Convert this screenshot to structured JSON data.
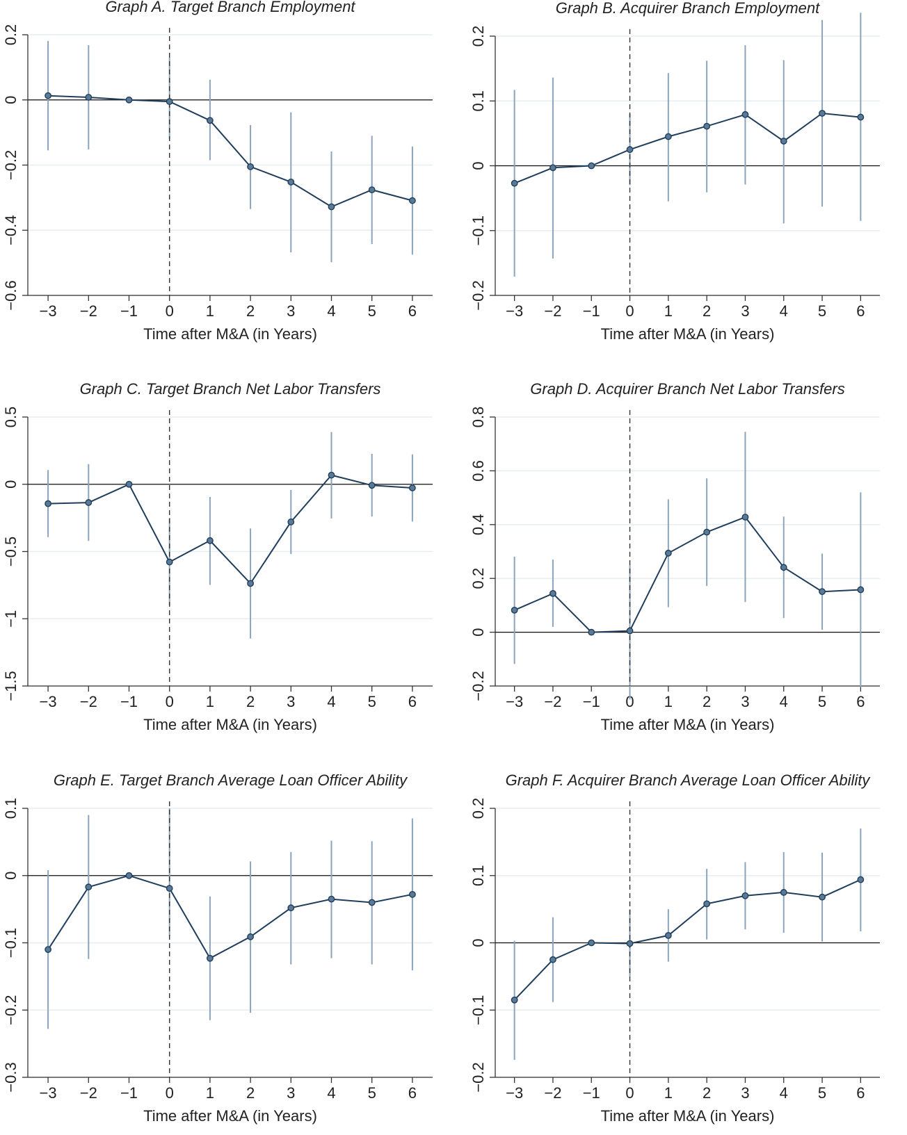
{
  "style": {
    "line_color": "#1f3d5c",
    "marker_fill": "#5a7a96",
    "ci_color": "#8aa4bd",
    "grid_color": "#e7eef1",
    "axis_color": "#333333"
  },
  "chart_data": [
    {
      "type": "line",
      "title": "Graph A. Target Branch Employment",
      "xlabel": "Time after M&A (in Years)",
      "ylabel": "",
      "xlim": [
        -3.5,
        6.5
      ],
      "ylim": [
        -0.6,
        0.2
      ],
      "y_ticks": [
        -0.6,
        -0.4,
        -0.2,
        0,
        0.2
      ],
      "y_tick_labels": [
        "−0.6",
        "−0.4",
        "−0.2",
        "0",
        "0.2"
      ],
      "x_ticks": [
        -3,
        -2,
        -1,
        0,
        1,
        2,
        3,
        4,
        5,
        6
      ],
      "x_tick_labels": [
        "−3",
        "−2",
        "−1",
        "0",
        "1",
        "2",
        "3",
        "4",
        "5",
        "6"
      ],
      "event_line_x": 0,
      "zero_line_y": 0,
      "series": [
        {
          "x": [
            -3,
            -2,
            -1,
            0,
            1,
            2,
            3,
            4,
            5,
            6
          ],
          "y": [
            0.013,
            0.008,
            0.0,
            -0.005,
            -0.063,
            -0.205,
            -0.252,
            -0.328,
            -0.276,
            -0.309
          ],
          "ci_low": [
            -0.155,
            -0.152,
            0.0,
            -0.12,
            -0.185,
            -0.335,
            -0.468,
            -0.498,
            -0.442,
            -0.475
          ],
          "ci_high": [
            0.181,
            0.168,
            0.0,
            0.13,
            0.062,
            -0.077,
            -0.038,
            -0.158,
            -0.11,
            -0.143
          ]
        }
      ]
    },
    {
      "type": "line",
      "title": "Graph B. Acquirer Branch Employment",
      "xlabel": "Time after M&A (in Years)",
      "ylabel": "",
      "xlim": [
        -3.5,
        6.5
      ],
      "ylim": [
        -0.2,
        0.2
      ],
      "y_ticks": [
        -0.2,
        -0.1,
        0,
        0.1,
        0.2
      ],
      "y_tick_labels": [
        "−0.2",
        "−0.1",
        "0",
        "0.1",
        "0.2"
      ],
      "x_ticks": [
        -3,
        -2,
        -1,
        0,
        1,
        2,
        3,
        4,
        5,
        6
      ],
      "x_tick_labels": [
        "−3",
        "−2",
        "−1",
        "0",
        "1",
        "2",
        "3",
        "4",
        "5",
        "6"
      ],
      "event_line_x": 0,
      "zero_line_y": 0,
      "series": [
        {
          "x": [
            -3,
            -2,
            -1,
            0,
            1,
            2,
            3,
            4,
            5,
            6
          ],
          "y": [
            -0.027,
            -0.003,
            0.0,
            0.025,
            0.045,
            0.061,
            0.079,
            0.038,
            0.081,
            0.075
          ],
          "ci_low": [
            -0.171,
            -0.143,
            0.0,
            -0.03,
            -0.055,
            -0.041,
            -0.029,
            -0.089,
            -0.063,
            -0.085
          ],
          "ci_high": [
            0.117,
            0.136,
            0.0,
            0.08,
            0.143,
            0.162,
            0.186,
            0.163,
            0.225,
            0.236
          ]
        }
      ]
    },
    {
      "type": "line",
      "title": "Graph C. Target Branch Net Labor Transfers",
      "xlabel": "Time after M&A (in Years)",
      "ylabel": "",
      "xlim": [
        -3.5,
        6.5
      ],
      "ylim": [
        -1.5,
        0.5
      ],
      "y_ticks": [
        -1.5,
        -1,
        -0.5,
        0,
        0.5
      ],
      "y_tick_labels": [
        "−1.5",
        "−1",
        "−0.5",
        "0",
        "0.5"
      ],
      "x_ticks": [
        -3,
        -2,
        -1,
        0,
        1,
        2,
        3,
        4,
        5,
        6
      ],
      "x_tick_labels": [
        "−3",
        "−2",
        "−1",
        "0",
        "1",
        "2",
        "3",
        "4",
        "5",
        "6"
      ],
      "event_line_x": 0,
      "zero_line_y": 0,
      "series": [
        {
          "x": [
            -3,
            -2,
            -1,
            0,
            1,
            2,
            3,
            4,
            5,
            6
          ],
          "y": [
            -0.144,
            -0.136,
            0.0,
            -0.578,
            -0.419,
            -0.737,
            -0.28,
            0.068,
            -0.008,
            -0.027
          ],
          "ci_low": [
            -0.393,
            -0.421,
            0.0,
            -0.9,
            -0.748,
            -1.147,
            -0.519,
            -0.254,
            -0.24,
            -0.277
          ],
          "ci_high": [
            0.106,
            0.15,
            0.0,
            -0.25,
            -0.094,
            -0.329,
            -0.042,
            0.388,
            0.226,
            0.222
          ]
        }
      ]
    },
    {
      "type": "line",
      "title": "Graph D. Acquirer Branch Net Labor Transfers",
      "xlabel": "Time after M&A (in Years)",
      "ylabel": "",
      "xlim": [
        -3.5,
        6.5
      ],
      "ylim": [
        -0.2,
        0.8
      ],
      "y_ticks": [
        -0.2,
        0,
        0.2,
        0.4,
        0.6,
        0.8
      ],
      "y_tick_labels": [
        "−0.2",
        "0",
        "0.2",
        "0.4",
        "0.6",
        "0.8"
      ],
      "x_ticks": [
        -3,
        -2,
        -1,
        0,
        1,
        2,
        3,
        4,
        5,
        6
      ],
      "x_tick_labels": [
        "−3",
        "−2",
        "−1",
        "0",
        "1",
        "2",
        "3",
        "4",
        "5",
        "6"
      ],
      "event_line_x": 0,
      "zero_line_y": 0,
      "series": [
        {
          "x": [
            -3,
            -2,
            -1,
            0,
            1,
            2,
            3,
            4,
            5,
            6
          ],
          "y": [
            0.082,
            0.144,
            0.0,
            0.005,
            0.294,
            0.372,
            0.428,
            0.241,
            0.151,
            0.158
          ],
          "ci_low": [
            -0.118,
            0.02,
            0.0,
            -0.25,
            0.093,
            0.172,
            0.112,
            0.053,
            0.009,
            -0.204
          ],
          "ci_high": [
            0.281,
            0.27,
            0.0,
            0.25,
            0.494,
            0.572,
            0.745,
            0.43,
            0.292,
            0.52
          ]
        }
      ]
    },
    {
      "type": "line",
      "title": "Graph E. Target Branch Average Loan Officer Ability",
      "xlabel": "Time after M&A (in Years)",
      "ylabel": "",
      "xlim": [
        -3.5,
        6.5
      ],
      "ylim": [
        -0.3,
        0.1
      ],
      "y_ticks": [
        -0.3,
        -0.2,
        -0.1,
        0,
        0.1
      ],
      "y_tick_labels": [
        "−0.3",
        "−0.2",
        "−0.1",
        "0",
        "0.1"
      ],
      "x_ticks": [
        -3,
        -2,
        -1,
        0,
        1,
        2,
        3,
        4,
        5,
        6
      ],
      "x_tick_labels": [
        "−3",
        "−2",
        "−1",
        "0",
        "1",
        "2",
        "3",
        "4",
        "5",
        "6"
      ],
      "event_line_x": 0,
      "zero_line_y": 0,
      "series": [
        {
          "x": [
            -3,
            -2,
            -1,
            0,
            1,
            2,
            3,
            4,
            5,
            6
          ],
          "y": [
            -0.11,
            -0.017,
            0.0,
            -0.019,
            -0.123,
            -0.091,
            -0.048,
            -0.035,
            -0.04,
            -0.028
          ],
          "ci_low": [
            -0.228,
            -0.124,
            0.0,
            -0.09,
            -0.215,
            -0.204,
            -0.132,
            -0.123,
            -0.132,
            -0.141
          ],
          "ci_high": [
            0.008,
            0.09,
            0.0,
            0.1,
            -0.031,
            0.021,
            0.035,
            0.052,
            0.051,
            0.085
          ]
        }
      ]
    },
    {
      "type": "line",
      "title": "Graph F. Acquirer Branch Average Loan Officer Ability",
      "xlabel": "Time after M&A (in Years)",
      "ylabel": "",
      "xlim": [
        -3.5,
        6.5
      ],
      "ylim": [
        -0.2,
        0.2
      ],
      "y_ticks": [
        -0.2,
        -0.1,
        0,
        0.1,
        0.2
      ],
      "y_tick_labels": [
        "−0.2",
        "−0.1",
        "0",
        "0.1",
        "0.2"
      ],
      "x_ticks": [
        -3,
        -2,
        -1,
        0,
        1,
        2,
        3,
        4,
        5,
        6
      ],
      "x_tick_labels": [
        "−3",
        "−2",
        "−1",
        "0",
        "1",
        "2",
        "3",
        "4",
        "5",
        "6"
      ],
      "event_line_x": 0,
      "zero_line_y": 0,
      "series": [
        {
          "x": [
            -3,
            -2,
            -1,
            0,
            1,
            2,
            3,
            4,
            5,
            6
          ],
          "y": [
            -0.085,
            -0.025,
            0.0,
            -0.001,
            0.011,
            0.058,
            0.07,
            0.075,
            0.068,
            0.094
          ],
          "ci_low": [
            -0.174,
            -0.088,
            0.0,
            -0.05,
            -0.028,
            0.005,
            0.02,
            0.015,
            0.002,
            0.017
          ],
          "ci_high": [
            0.003,
            0.038,
            0.0,
            0.05,
            0.05,
            0.11,
            0.12,
            0.135,
            0.134,
            0.17
          ]
        }
      ]
    }
  ]
}
